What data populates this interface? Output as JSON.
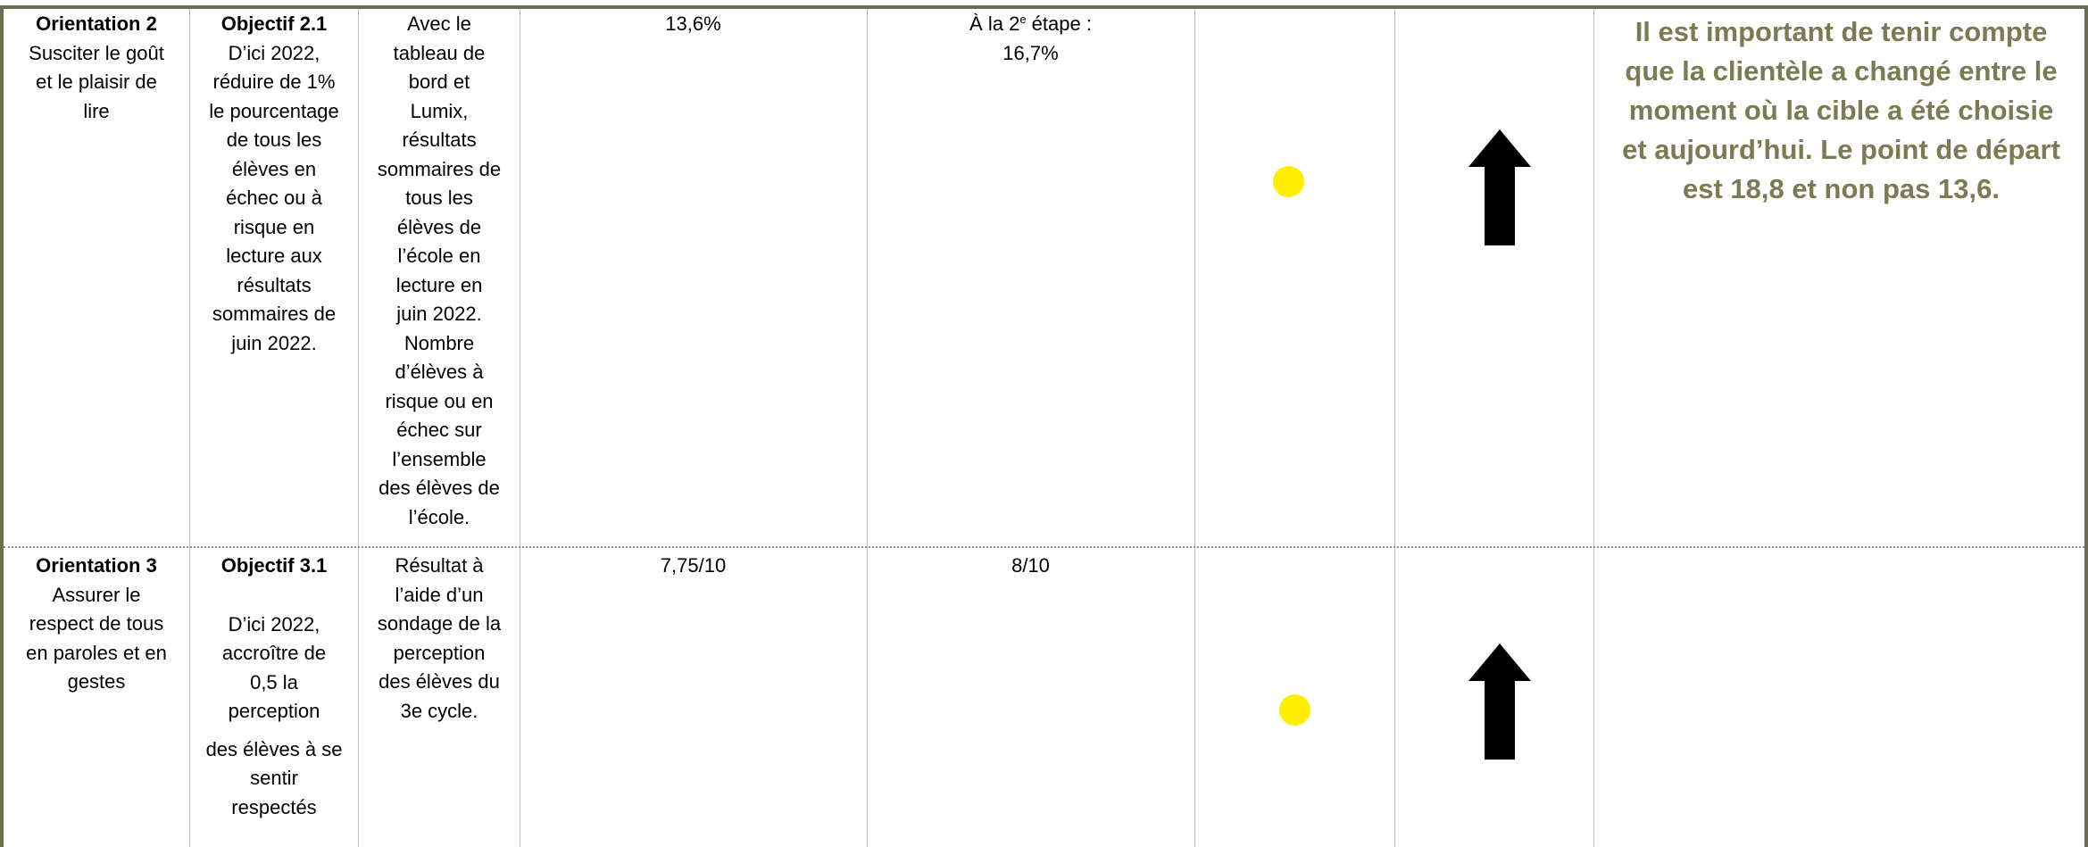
{
  "rows": [
    {
      "orientation_title": "Orientation 2",
      "orientation_lines": [
        "Susciter le goût",
        "et le plaisir de",
        "lire"
      ],
      "objective_title": "Objectif 2.1",
      "objective_lines": [
        "D’ici 2022,",
        "réduire de 1%",
        "le pourcentage",
        "de tous les",
        "élèves en",
        "échec ou à",
        "risque en",
        "lecture aux",
        "résultats",
        "sommaires de",
        "juin 2022."
      ],
      "source_lines": [
        "Avec le",
        "tableau de",
        "bord et",
        "Lumix,",
        "résultats",
        "sommaires de",
        "tous les",
        "élèves de",
        "l’école en",
        "lecture en",
        "juin 2022.",
        "Nombre",
        "d’élèves à",
        "risque ou en",
        "échec sur",
        "l’ensemble",
        "des élèves de",
        "l’école."
      ],
      "baseline": "13,6%",
      "result_prefix": "À la 2",
      "result_sup": "e",
      "result_suffix": " étape :",
      "result_value": "16,7%",
      "status_color": "#ffee00",
      "trend_icon": "arrow-up-icon",
      "comment_lines": [
        "Il est important de tenir compte",
        "que la clientèle a changé entre le",
        "moment où la cible a été choisie",
        "et aujourd’hui. Le point de départ",
        "est 18,8 et non pas 13,6."
      ]
    },
    {
      "orientation_title": "Orientation 3",
      "orientation_lines": [
        "Assurer le",
        "respect de tous",
        "en paroles et en",
        "gestes"
      ],
      "objective_title": "Objectif 3.1",
      "objective_lines_a": [
        "D’ici 2022,",
        "accroître de",
        "0,5 la",
        "perception"
      ],
      "objective_lines_b": [
        "des élèves à se",
        "sentir",
        "respectés"
      ],
      "source_lines": [
        "Résultat à",
        "l’aide d’un",
        "sondage de la",
        "perception",
        "des élèves du",
        "3e cycle."
      ],
      "baseline": "7,75/10",
      "result_value": "8/10",
      "status_color": "#ffee00",
      "trend_icon": "arrow-up-icon"
    }
  ],
  "colors": {
    "frame": "#6b6d55",
    "comment_text": "#7b7a53",
    "status_dot": "#ffee00"
  }
}
